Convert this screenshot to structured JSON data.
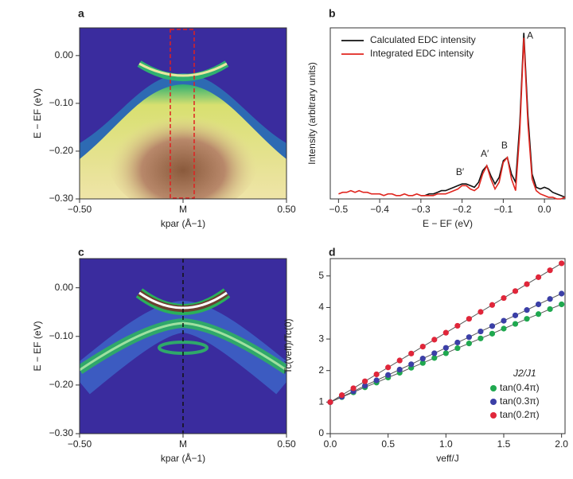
{
  "chart_data": [
    {
      "type": "heatmap",
      "title": "a",
      "xlabel": "kpar (Å−1)",
      "ylabel": "E − EF (eV)",
      "xlim": [
        -0.5,
        0.5
      ],
      "ylim": [
        -0.3,
        0.058
      ],
      "xticks": [
        {
          "value": -0.5,
          "label": "−0.50"
        },
        {
          "value": 0,
          "label": "M"
        },
        {
          "value": 0.5,
          "label": "0.50"
        }
      ],
      "yticks": [
        {
          "value": 0,
          "label": "0.00"
        },
        {
          "value": -0.1,
          "label": "−0.10"
        },
        {
          "value": -0.2,
          "label": "−0.20"
        },
        {
          "value": -0.3,
          "label": "−0.30"
        }
      ]
    },
    {
      "type": "line",
      "title": "b",
      "xlabel": "E − EF (eV)",
      "ylabel": "Intensity (arbitrary units)",
      "xlim": [
        -0.52,
        0.05
      ],
      "ylim": [
        0,
        1.03
      ],
      "xticks": [
        {
          "value": -0.5,
          "label": "−0.5"
        },
        {
          "value": -0.4,
          "label": "−0.4"
        },
        {
          "value": -0.3,
          "label": "−0.3"
        },
        {
          "value": -0.2,
          "label": "−0.2"
        },
        {
          "value": -0.1,
          "label": "−0.1"
        },
        {
          "value": 0,
          "label": "0.0"
        }
      ],
      "legend": "upper left",
      "x": [
        -0.5,
        -0.49,
        -0.48,
        -0.47,
        -0.46,
        -0.45,
        -0.44,
        -0.43,
        -0.42,
        -0.41,
        -0.4,
        -0.39,
        -0.38,
        -0.37,
        -0.36,
        -0.35,
        -0.34,
        -0.33,
        -0.32,
        -0.31,
        -0.3,
        -0.29,
        -0.28,
        -0.27,
        -0.26,
        -0.25,
        -0.24,
        -0.23,
        -0.22,
        -0.21,
        -0.2,
        -0.19,
        -0.18,
        -0.17,
        -0.16,
        -0.15,
        -0.14,
        -0.13,
        -0.12,
        -0.11,
        -0.1,
        -0.09,
        -0.08,
        -0.07,
        -0.06,
        -0.05,
        -0.04,
        -0.03,
        -0.02,
        -0.01,
        0,
        0.01,
        0.02,
        0.03,
        0.04,
        0.05
      ],
      "series": [
        {
          "name": "Calculated EDC intensity",
          "color": "#111111",
          "values": [
            null,
            null,
            null,
            null,
            null,
            null,
            null,
            null,
            null,
            null,
            null,
            null,
            null,
            null,
            null,
            null,
            null,
            null,
            null,
            null,
            0.02,
            0.02,
            0.03,
            0.03,
            0.04,
            0.05,
            0.05,
            0.06,
            0.07,
            0.08,
            0.09,
            0.09,
            0.08,
            0.07,
            0.1,
            0.17,
            0.2,
            0.14,
            0.09,
            0.13,
            0.23,
            0.25,
            0.15,
            0.1,
            0.45,
            1.0,
            0.5,
            0.15,
            0.07,
            0.06,
            0.07,
            0.06,
            0.04,
            0.03,
            0.02,
            0.01
          ]
        },
        {
          "name": "Integrated EDC intensity",
          "color": "#e0261f",
          "values": [
            0.03,
            0.04,
            0.04,
            0.05,
            0.04,
            0.05,
            0.04,
            0.04,
            0.03,
            0.03,
            0.03,
            0.02,
            0.03,
            0.03,
            0.02,
            0.02,
            0.03,
            0.02,
            0.02,
            0.03,
            0.02,
            0.02,
            0.02,
            0.02,
            0.03,
            0.03,
            0.03,
            0.04,
            0.05,
            0.06,
            0.08,
            0.08,
            0.06,
            0.05,
            0.07,
            0.15,
            0.2,
            0.12,
            0.06,
            0.1,
            0.22,
            0.25,
            0.12,
            0.05,
            0.4,
            0.97,
            0.45,
            0.12,
            0.05,
            0.03,
            0.02,
            0.01,
            0.01,
            0,
            0,
            0.01
          ]
        }
      ],
      "annotations": [
        {
          "text": "A",
          "x": -0.035,
          "y": 0.98
        },
        {
          "text": "A′",
          "x": -0.145,
          "y": 0.27
        },
        {
          "text": "B",
          "x": -0.097,
          "y": 0.32
        },
        {
          "text": "B′",
          "x": -0.205,
          "y": 0.16
        }
      ]
    },
    {
      "type": "heatmap",
      "title": "c",
      "xlabel": "kpar (Å−1)",
      "ylabel": "E − EF (eV)",
      "xlim": [
        -0.5,
        0.5
      ],
      "ylim": [
        -0.3,
        0.06
      ],
      "xticks": [
        {
          "value": -0.5,
          "label": "−0.50"
        },
        {
          "value": 0,
          "label": "M"
        },
        {
          "value": 0.5,
          "label": "0.50"
        }
      ],
      "yticks": [
        {
          "value": 0,
          "label": "0.00"
        },
        {
          "value": -0.1,
          "label": "−0.10"
        },
        {
          "value": -0.2,
          "label": "−0.20"
        },
        {
          "value": -0.3,
          "label": "−0.30"
        }
      ]
    },
    {
      "type": "scatter",
      "title": "d",
      "xlabel": "veff/J",
      "ylabel": "Tc(veff)/Tc(0)",
      "xlim": [
        0,
        2.03
      ],
      "ylim": [
        0,
        5.55
      ],
      "xticks": [
        {
          "value": 0,
          "label": "0.0"
        },
        0.5,
        {
          "value": 1,
          "label": "1.0"
        },
        1.5,
        {
          "value": 2,
          "label": "2.0"
        }
      ],
      "yticks": [
        0,
        1,
        2,
        3,
        4,
        5
      ],
      "line": true,
      "legend": "lower right",
      "legend_title": "J2/J1",
      "x": [
        0,
        0.1,
        0.2,
        0.3,
        0.4,
        0.5,
        0.6,
        0.7,
        0.8,
        0.9,
        1.0,
        1.1,
        1.2,
        1.3,
        1.4,
        1.5,
        1.6,
        1.7,
        1.8,
        1.9,
        2.0
      ],
      "series": [
        {
          "name": "tan(0.4π)",
          "color": "#1fa84f",
          "values": [
            1,
            1.16,
            1.31,
            1.47,
            1.62,
            1.78,
            1.93,
            2.09,
            2.24,
            2.4,
            2.55,
            2.71,
            2.86,
            3.02,
            3.17,
            3.33,
            3.48,
            3.64,
            3.79,
            3.95,
            4.1
          ]
        },
        {
          "name": "tan(0.3π)",
          "color": "#3b3fa6",
          "values": [
            1,
            1.17,
            1.34,
            1.52,
            1.69,
            1.86,
            2.03,
            2.2,
            2.38,
            2.55,
            2.72,
            2.89,
            3.06,
            3.24,
            3.41,
            3.58,
            3.75,
            3.92,
            4.1,
            4.27,
            4.44
          ]
        },
        {
          "name": "tan(0.2π)",
          "color": "#e0263a",
          "values": [
            1,
            1.22,
            1.44,
            1.66,
            1.88,
            2.1,
            2.32,
            2.54,
            2.76,
            2.98,
            3.2,
            3.42,
            3.64,
            3.86,
            4.08,
            4.3,
            4.52,
            4.74,
            4.96,
            5.18,
            5.4
          ]
        }
      ]
    }
  ]
}
